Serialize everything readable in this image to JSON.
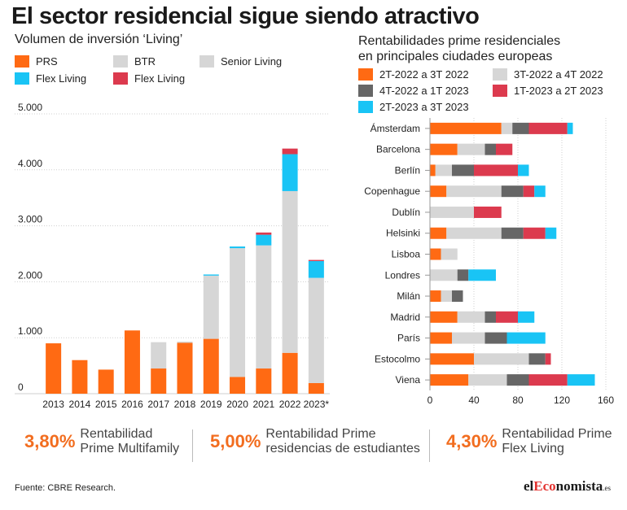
{
  "title": "El sector residencial sigue siendo atractivo",
  "colors": {
    "orange": "#ff6a13",
    "light_gray": "#d6d6d6",
    "dark_gray": "#666666",
    "cyan": "#19c4f5",
    "red": "#dc3a4e"
  },
  "chart_data": [
    {
      "type": "bar",
      "stacked": true,
      "title": "Volumen de inversión ‘Living’",
      "categories": [
        "2013",
        "2014",
        "2015",
        "2016",
        "2017",
        "2018",
        "2019",
        "2020",
        "2021",
        "2022",
        "2023*"
      ],
      "ylim": [
        0,
        5000
      ],
      "yticks": [
        0,
        1000,
        2000,
        3000,
        4000,
        5000
      ],
      "ytick_labels": [
        "0",
        "1.000",
        "2.000",
        "3.000",
        "4.000",
        "5.000"
      ],
      "grid": "horizontal",
      "legend_placement": "top",
      "series": [
        {
          "name": "PRS",
          "color": "#ff6a13",
          "values": [
            900,
            600,
            430,
            1130,
            450,
            910,
            980,
            300,
            450,
            730,
            190
          ]
        },
        {
          "name": "BTR",
          "color": "#d6d6d6",
          "values": [
            0,
            0,
            0,
            0,
            470,
            20,
            1130,
            2300,
            2200,
            2890,
            1880
          ]
        },
        {
          "name": "Senior Living",
          "color": "#d6d6d6",
          "values": [
            0,
            0,
            0,
            0,
            0,
            0,
            0,
            0,
            0,
            0,
            0
          ]
        },
        {
          "name": "Flex Living",
          "color": "#19c4f5",
          "values": [
            0,
            0,
            0,
            0,
            0,
            0,
            20,
            30,
            190,
            660,
            300
          ]
        },
        {
          "name": "Flex Living",
          "color": "#dc3a4e",
          "values": [
            0,
            0,
            0,
            0,
            0,
            0,
            0,
            0,
            40,
            100,
            20
          ]
        }
      ]
    },
    {
      "type": "bar",
      "orientation": "horizontal",
      "stacked": true,
      "title": "Rentabilidades prime residenciales\nen principales ciudades europeas",
      "categories": [
        "Ámsterdam",
        "Barcelona",
        "Berlín",
        "Copenhague",
        "Dublín",
        "Helsinki",
        "Lisboa",
        "Londres",
        "Milán",
        "Madrid",
        "París",
        "Estocolmo",
        "Viena"
      ],
      "xlim": [
        0,
        160
      ],
      "xticks": [
        0,
        40,
        80,
        120,
        160
      ],
      "xtick_labels": [
        "0",
        "40",
        "80",
        "120",
        "160"
      ],
      "grid": "vertical",
      "legend_placement": "top",
      "series": [
        {
          "name": "2T-2022 a 3T 2022",
          "color": "#ff6a13",
          "values": [
            65,
            25,
            5,
            15,
            0,
            15,
            10,
            0,
            10,
            25,
            20,
            40,
            35
          ]
        },
        {
          "name": "3T-2022 a 4T 2022",
          "color": "#d6d6d6",
          "values": [
            10,
            25,
            15,
            50,
            40,
            50,
            15,
            25,
            10,
            25,
            30,
            50,
            35
          ]
        },
        {
          "name": "4T-2022 a 1T 2023",
          "color": "#666666",
          "values": [
            15,
            10,
            20,
            20,
            0,
            20,
            0,
            10,
            10,
            10,
            20,
            15,
            20
          ]
        },
        {
          "name": "1T-2023 a 2T 2023",
          "color": "#dc3a4e",
          "values": [
            35,
            15,
            40,
            10,
            25,
            20,
            0,
            0,
            0,
            20,
            0,
            5,
            35
          ]
        },
        {
          "name": "2T-2023 a 3T 2023",
          "color": "#19c4f5",
          "values": [
            5,
            0,
            10,
            10,
            0,
            10,
            0,
            25,
            0,
            15,
            35,
            0,
            25
          ]
        }
      ]
    }
  ],
  "kpis": [
    {
      "value": "3,80%",
      "label_line1": "Rentabilidad",
      "label_line2": "Prime Multifamily"
    },
    {
      "value": "5,00%",
      "label_line1": "Rentabilidad Prime",
      "label_line2": "residencias de estudiantes"
    },
    {
      "value": "4,30%",
      "label_line1": "Rentabilidad Prime",
      "label_line2": "Flex Living"
    }
  ],
  "source": "Fuente: CBRE Research.",
  "brand": {
    "part1": "el",
    "part2": "Eco",
    "part3": "nomista",
    "suffix": ".es"
  }
}
